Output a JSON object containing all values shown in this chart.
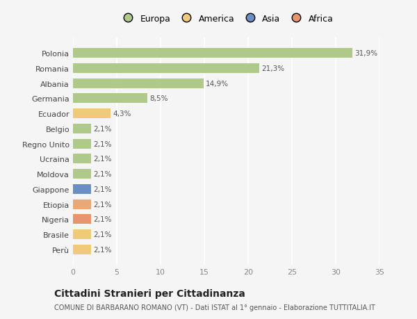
{
  "categories": [
    "Perù",
    "Brasile",
    "Nigeria",
    "Etiopia",
    "Giappone",
    "Moldova",
    "Ucraina",
    "Regno Unito",
    "Belgio",
    "Ecuador",
    "Germania",
    "Albania",
    "Romania",
    "Polonia"
  ],
  "values": [
    2.1,
    2.1,
    2.1,
    2.1,
    2.1,
    2.1,
    2.1,
    2.1,
    2.1,
    4.3,
    8.5,
    14.9,
    21.3,
    31.9
  ],
  "labels": [
    "2,1%",
    "2,1%",
    "2,1%",
    "2,1%",
    "2,1%",
    "2,1%",
    "2,1%",
    "2,1%",
    "2,1%",
    "4,3%",
    "8,5%",
    "14,9%",
    "21,3%",
    "31,9%"
  ],
  "colors": [
    "#f0c97a",
    "#f0c97a",
    "#e8956e",
    "#e8a878",
    "#6b8fc4",
    "#aec98a",
    "#aec98a",
    "#aec98a",
    "#aec98a",
    "#f0c97a",
    "#aec98a",
    "#aec98a",
    "#aec98a",
    "#aec98a"
  ],
  "continent_colors": {
    "Europa": "#aec98a",
    "America": "#f0c97a",
    "Asia": "#6b8fc4",
    "Africa": "#e8956e"
  },
  "legend_labels": [
    "Europa",
    "America",
    "Asia",
    "Africa"
  ],
  "xlim": [
    0,
    35
  ],
  "xticks": [
    0,
    5,
    10,
    15,
    20,
    25,
    30,
    35
  ],
  "title": "Cittadini Stranieri per Cittadinanza",
  "subtitle": "COMUNE DI BARBARANO ROMANO (VT) - Dati ISTAT al 1° gennaio - Elaborazione TUTTITALIA.IT",
  "background_color": "#f5f5f5",
  "grid_color": "#ffffff",
  "bar_height": 0.65
}
